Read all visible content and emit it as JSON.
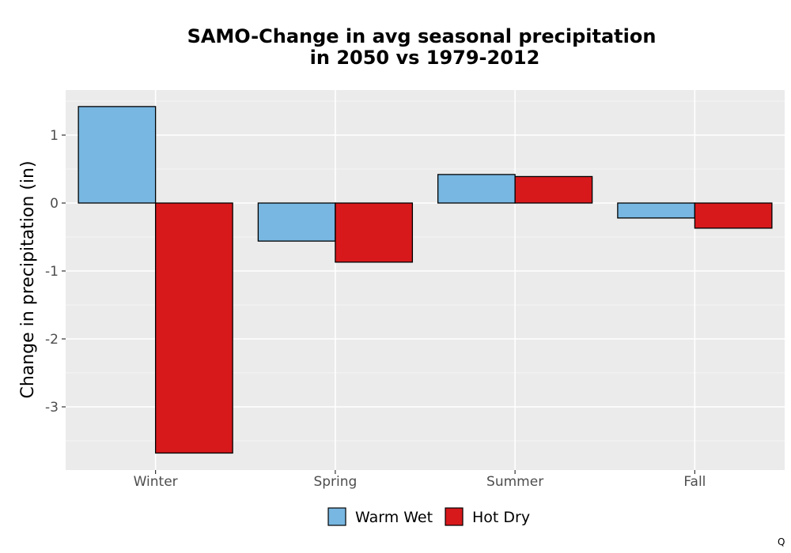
{
  "chart_data": {
    "type": "bar",
    "title": [
      "SAMO-Change in avg seasonal precipitation",
      "in 2050 vs 1979-2012"
    ],
    "xlabel": "",
    "ylabel": "Change in precipitation (in)",
    "categories": [
      "Winter",
      "Spring",
      "Summer",
      "Fall"
    ],
    "series": [
      {
        "name": "Warm Wet",
        "color": "#77b7e2",
        "values": [
          1.42,
          -0.56,
          0.42,
          -0.22
        ]
      },
      {
        "name": "Hot Dry",
        "color": "#d7191c",
        "values": [
          -3.68,
          -0.87,
          0.39,
          -0.37
        ]
      }
    ],
    "ylim": [
      -3.95,
      1.65
    ],
    "yticks": [
      1,
      0,
      -1,
      -2,
      -3
    ],
    "ytick_labels": [
      "1",
      "0",
      "-1",
      "-2",
      "-3"
    ],
    "grid": true,
    "legend_position": "bottom"
  },
  "footnote": "Q"
}
